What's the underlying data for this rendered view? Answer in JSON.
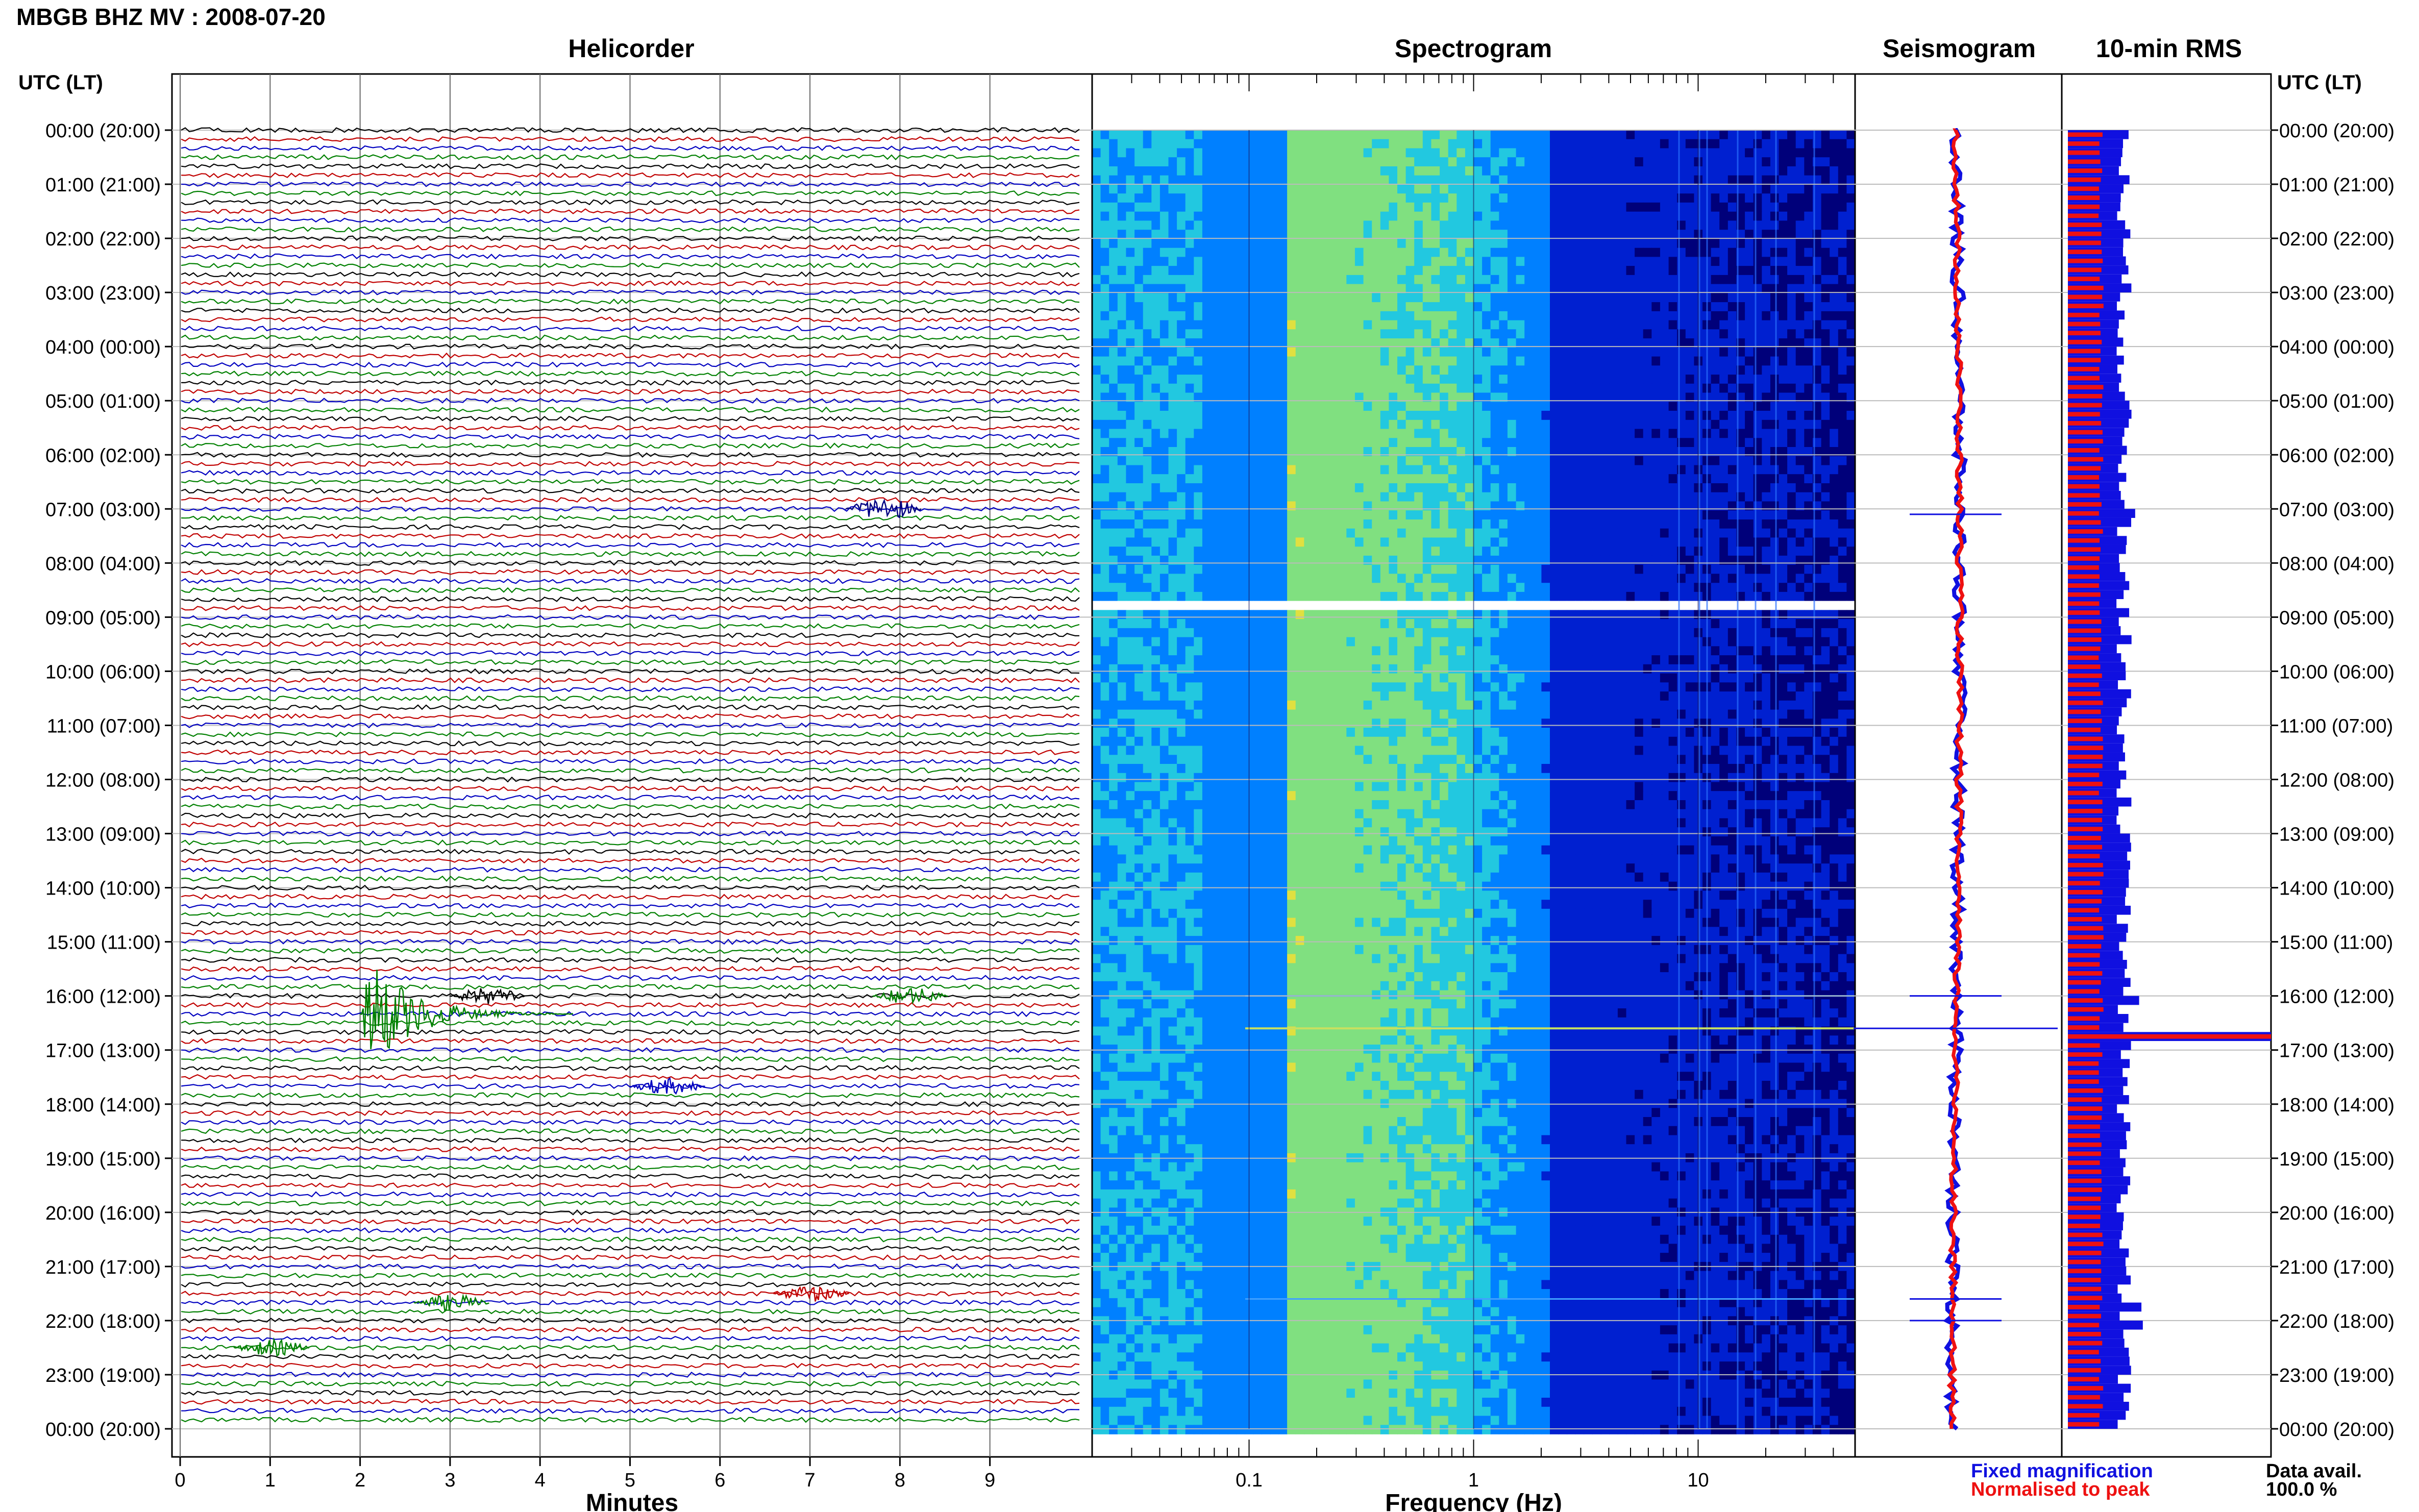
{
  "title": "MBGB BHZ MV : 2008-07-20",
  "panels": {
    "helicorder": "Helicorder",
    "spectrogram": "Spectrogram",
    "seismogram": "Seismogram",
    "rms": "10-min RMS"
  },
  "utc_label_left": "UTC (LT)",
  "utc_label_right": "UTC (LT)",
  "legend": {
    "fixed": "Fixed magnification",
    "normalised": "Normalised to peak",
    "fixed_color": "#1010e0",
    "normalised_color": "#ee1111"
  },
  "data_avail": {
    "label": "Data avail.",
    "value": "100.0 %"
  },
  "chart_data": [
    {
      "type": "line",
      "panel": "helicorder",
      "xlabel": "Minutes",
      "ylabel": "UTC (LT)",
      "x_ticks": [
        "0",
        "1",
        "2",
        "3",
        "4",
        "5",
        "6",
        "7",
        "8",
        "9"
      ],
      "xlim": [
        0,
        10
      ],
      "y_ticks": [
        "00:00 (20:00)",
        "01:00 (21:00)",
        "02:00 (22:00)",
        "03:00 (23:00)",
        "04:00 (00:00)",
        "05:00 (01:00)",
        "06:00 (02:00)",
        "07:00 (03:00)",
        "08:00 (04:00)",
        "09:00 (05:00)",
        "10:00 (06:00)",
        "11:00 (07:00)",
        "12:00 (08:00)",
        "13:00 (09:00)",
        "14:00 (10:00)",
        "15:00 (11:00)",
        "16:00 (12:00)",
        "17:00 (13:00)",
        "18:00 (14:00)",
        "19:00 (15:00)",
        "20:00 (16:00)",
        "21:00 (17:00)",
        "22:00 (18:00)",
        "23:00 (19:00)",
        "00:00 (20:00)"
      ],
      "trace_colors": [
        "#000000",
        "#c00000",
        "#0000c0",
        "#008000"
      ],
      "events": [
        {
          "hour": 7.0,
          "minute": 7.4,
          "color": "#000080",
          "amp": "moderate"
        },
        {
          "hour": 16.33,
          "minute": 2.0,
          "color": "#008000",
          "amp": "large"
        },
        {
          "hour": 16.0,
          "minute": 3.0,
          "color": "#000000",
          "amp": "small"
        },
        {
          "hour": 16.0,
          "minute": 7.7,
          "color": "#008000",
          "amp": "small"
        },
        {
          "hour": 17.67,
          "minute": 5.0,
          "color": "#0000c0",
          "amp": "small"
        },
        {
          "hour": 21.5,
          "minute": 6.6,
          "color": "#c00000",
          "amp": "small"
        },
        {
          "hour": 21.67,
          "minute": 2.6,
          "color": "#008000",
          "amp": "small"
        },
        {
          "hour": 22.5,
          "minute": 0.6,
          "color": "#008000",
          "amp": "small"
        }
      ]
    },
    {
      "type": "heatmap",
      "panel": "spectrogram",
      "xlabel": "Frequency (Hz)",
      "x_scale": "log",
      "x_ticks": [
        "0.1",
        "1",
        "10"
      ],
      "xlim": [
        0.02,
        50
      ],
      "colormap": [
        "#00007a",
        "#0020d0",
        "#0080ff",
        "#22c8e0",
        "#80e080",
        "#e0e040"
      ],
      "notes_gap_hours": [
        8.6
      ]
    },
    {
      "type": "line",
      "panel": "seismogram",
      "series": [
        {
          "name": "Fixed magnification",
          "color": "#1010e0"
        },
        {
          "name": "Normalised to peak",
          "color": "#ee1111"
        }
      ],
      "spike_hours": [
        7.1,
        16.0,
        16.6,
        21.6,
        22.0
      ]
    },
    {
      "type": "bar",
      "panel": "rms",
      "series": [
        {
          "name": "Fixed magnification",
          "color": "#1010e0"
        },
        {
          "name": "Normalised to peak",
          "color": "#ee1111"
        }
      ],
      "interval_minutes": 10,
      "peak_hour": 16.6
    }
  ]
}
